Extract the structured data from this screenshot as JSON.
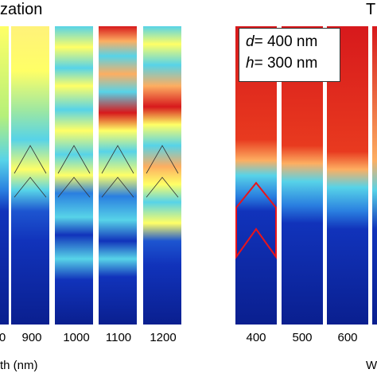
{
  "left_panel": {
    "title_fragment": "zation",
    "tick_labels": [
      "0",
      "900",
      "1000",
      "1100",
      "1200"
    ],
    "axis_label_fragment": "th (nm)"
  },
  "right_panel": {
    "title_fragment": "T",
    "tick_labels": [
      "400",
      "500",
      "600"
    ],
    "axis_label_fragment": "W",
    "legend": {
      "d_symbol": "d",
      "d_value": "= 400 nm",
      "h_symbol": "h",
      "h_value": "= 300 nm"
    }
  },
  "colors": {
    "field_high": "#d7191c",
    "field_mid_warm": "#fdae61",
    "field_mid": "#ffff66",
    "field_mid_cool": "#57d3e8",
    "field_low": "#1133bb",
    "field_lowest": "#0a1f8f",
    "highlight_outline": "#e8141b"
  }
}
